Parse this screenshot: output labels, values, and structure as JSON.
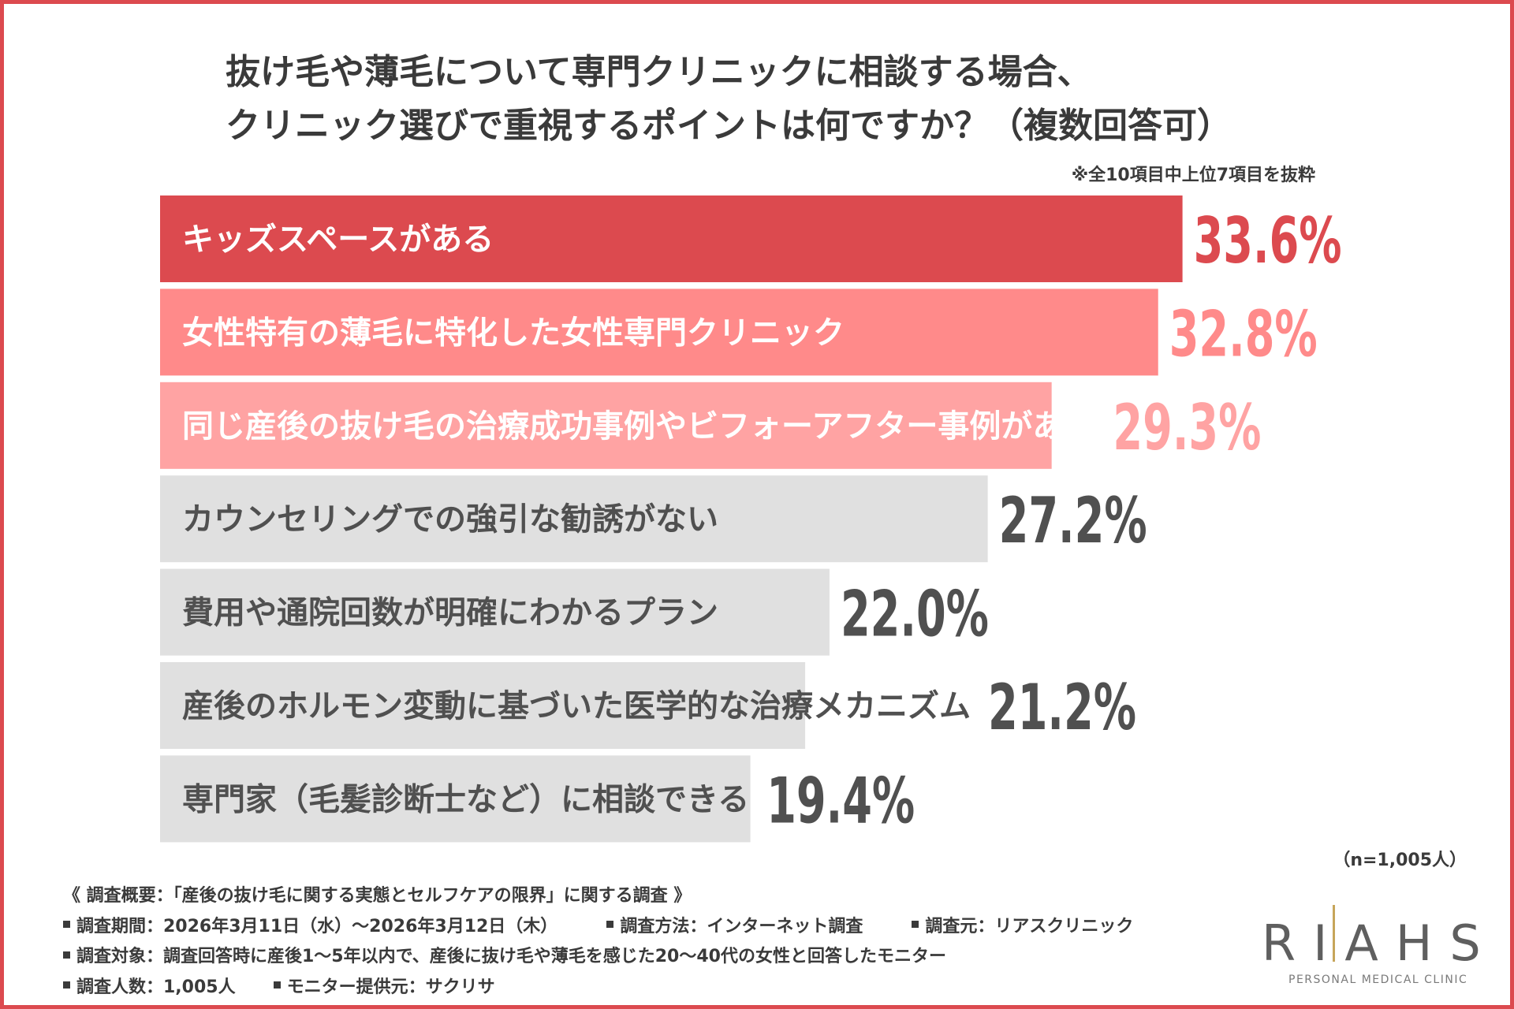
{
  "title": {
    "line1": "抜け毛や薄毛について専門クリニックに相談する場合、",
    "line2": "クリニック選びで重視するポイントは何ですか？（複数回答可）"
  },
  "note": "※全10項目中上位7項目を抜粋",
  "chart_data": {
    "type": "bar",
    "orientation": "horizontal",
    "unit": "%",
    "categories": [
      "キッズスペースがある",
      "女性特有の薄毛に特化した女性専門クリニック",
      "同じ産後の抜け毛の治療成功事例やビフォーアフター事例がある",
      "カウンセリングでの強引な勧誘がない",
      "費用や通院回数が明確にわかるプラン",
      "産後のホルモン変動に基づいた医学的な治療メカニズム",
      "専門家（毛髪診断士など）に相談できる"
    ],
    "values": [
      33.6,
      32.8,
      29.3,
      27.2,
      22.0,
      21.2,
      19.4
    ],
    "value_labels": [
      "33.6%",
      "32.8%",
      "29.3%",
      "27.2%",
      "22.0%",
      "21.2%",
      "19.4%"
    ],
    "bar_colors": [
      "#dc4a4f",
      "#ff8a8a",
      "#ffa3a3",
      "#e0e0e0",
      "#e0e0e0",
      "#e0e0e0",
      "#e0e0e0"
    ],
    "label_colors": [
      "#ffffff",
      "#ffffff",
      "#ffffff",
      "#505050",
      "#505050",
      "#505050",
      "#505050"
    ],
    "value_colors": [
      "#dc4a4f",
      "#ff8a8a",
      "#ffa3a3",
      "#505050",
      "#505050",
      "#505050",
      "#505050"
    ],
    "xlim": [
      0,
      36
    ],
    "grid": false,
    "legend": "none"
  },
  "sample_size": "（n=1,005人）",
  "survey": {
    "overview": "《 調査概要：「産後の抜け毛に関する実態とセルフケアの限界」に関する調査 》",
    "period": "調査期間：2026年3月11日（水）～2026年3月12日（木）",
    "method": "調査方法：インターネット調査",
    "source": "調査元：リアスクリニック",
    "target": "調査対象：調査回答時に産後1～5年以内で、産後に抜け毛や薄毛を感じた20～40代の女性と回答したモニター",
    "count": "調査人数：1,005人",
    "provider": "モニター提供元：サクリサ"
  },
  "logo": {
    "text": "RIAHS",
    "subtitle": "PERSONAL MEDICAL CLINIC",
    "accent": "#c6a55a"
  }
}
